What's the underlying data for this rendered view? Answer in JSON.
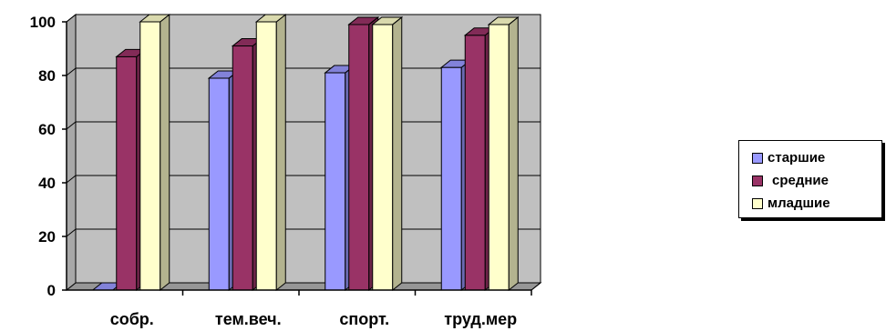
{
  "chart_data": {
    "type": "bar",
    "categories": [
      "собр.",
      "тем.веч.",
      "спорт.",
      "труд.мер"
    ],
    "series": [
      {
        "name": "старшие",
        "values": [
          0,
          79,
          81,
          83
        ],
        "color": "#9999ff"
      },
      {
        "name": "средние",
        "values": [
          87,
          91,
          99,
          95
        ],
        "color": "#993366"
      },
      {
        "name": "младшие",
        "values": [
          100,
          100,
          99,
          99
        ],
        "color": "#ffffcc"
      }
    ],
    "yticks": [
      "0",
      "20",
      "40",
      "60",
      "80",
      "100"
    ],
    "ylim": [
      0,
      100
    ],
    "grid": true,
    "legend_position": "right",
    "wall_color": "#c0c0c0",
    "floor_color": "#969696"
  }
}
